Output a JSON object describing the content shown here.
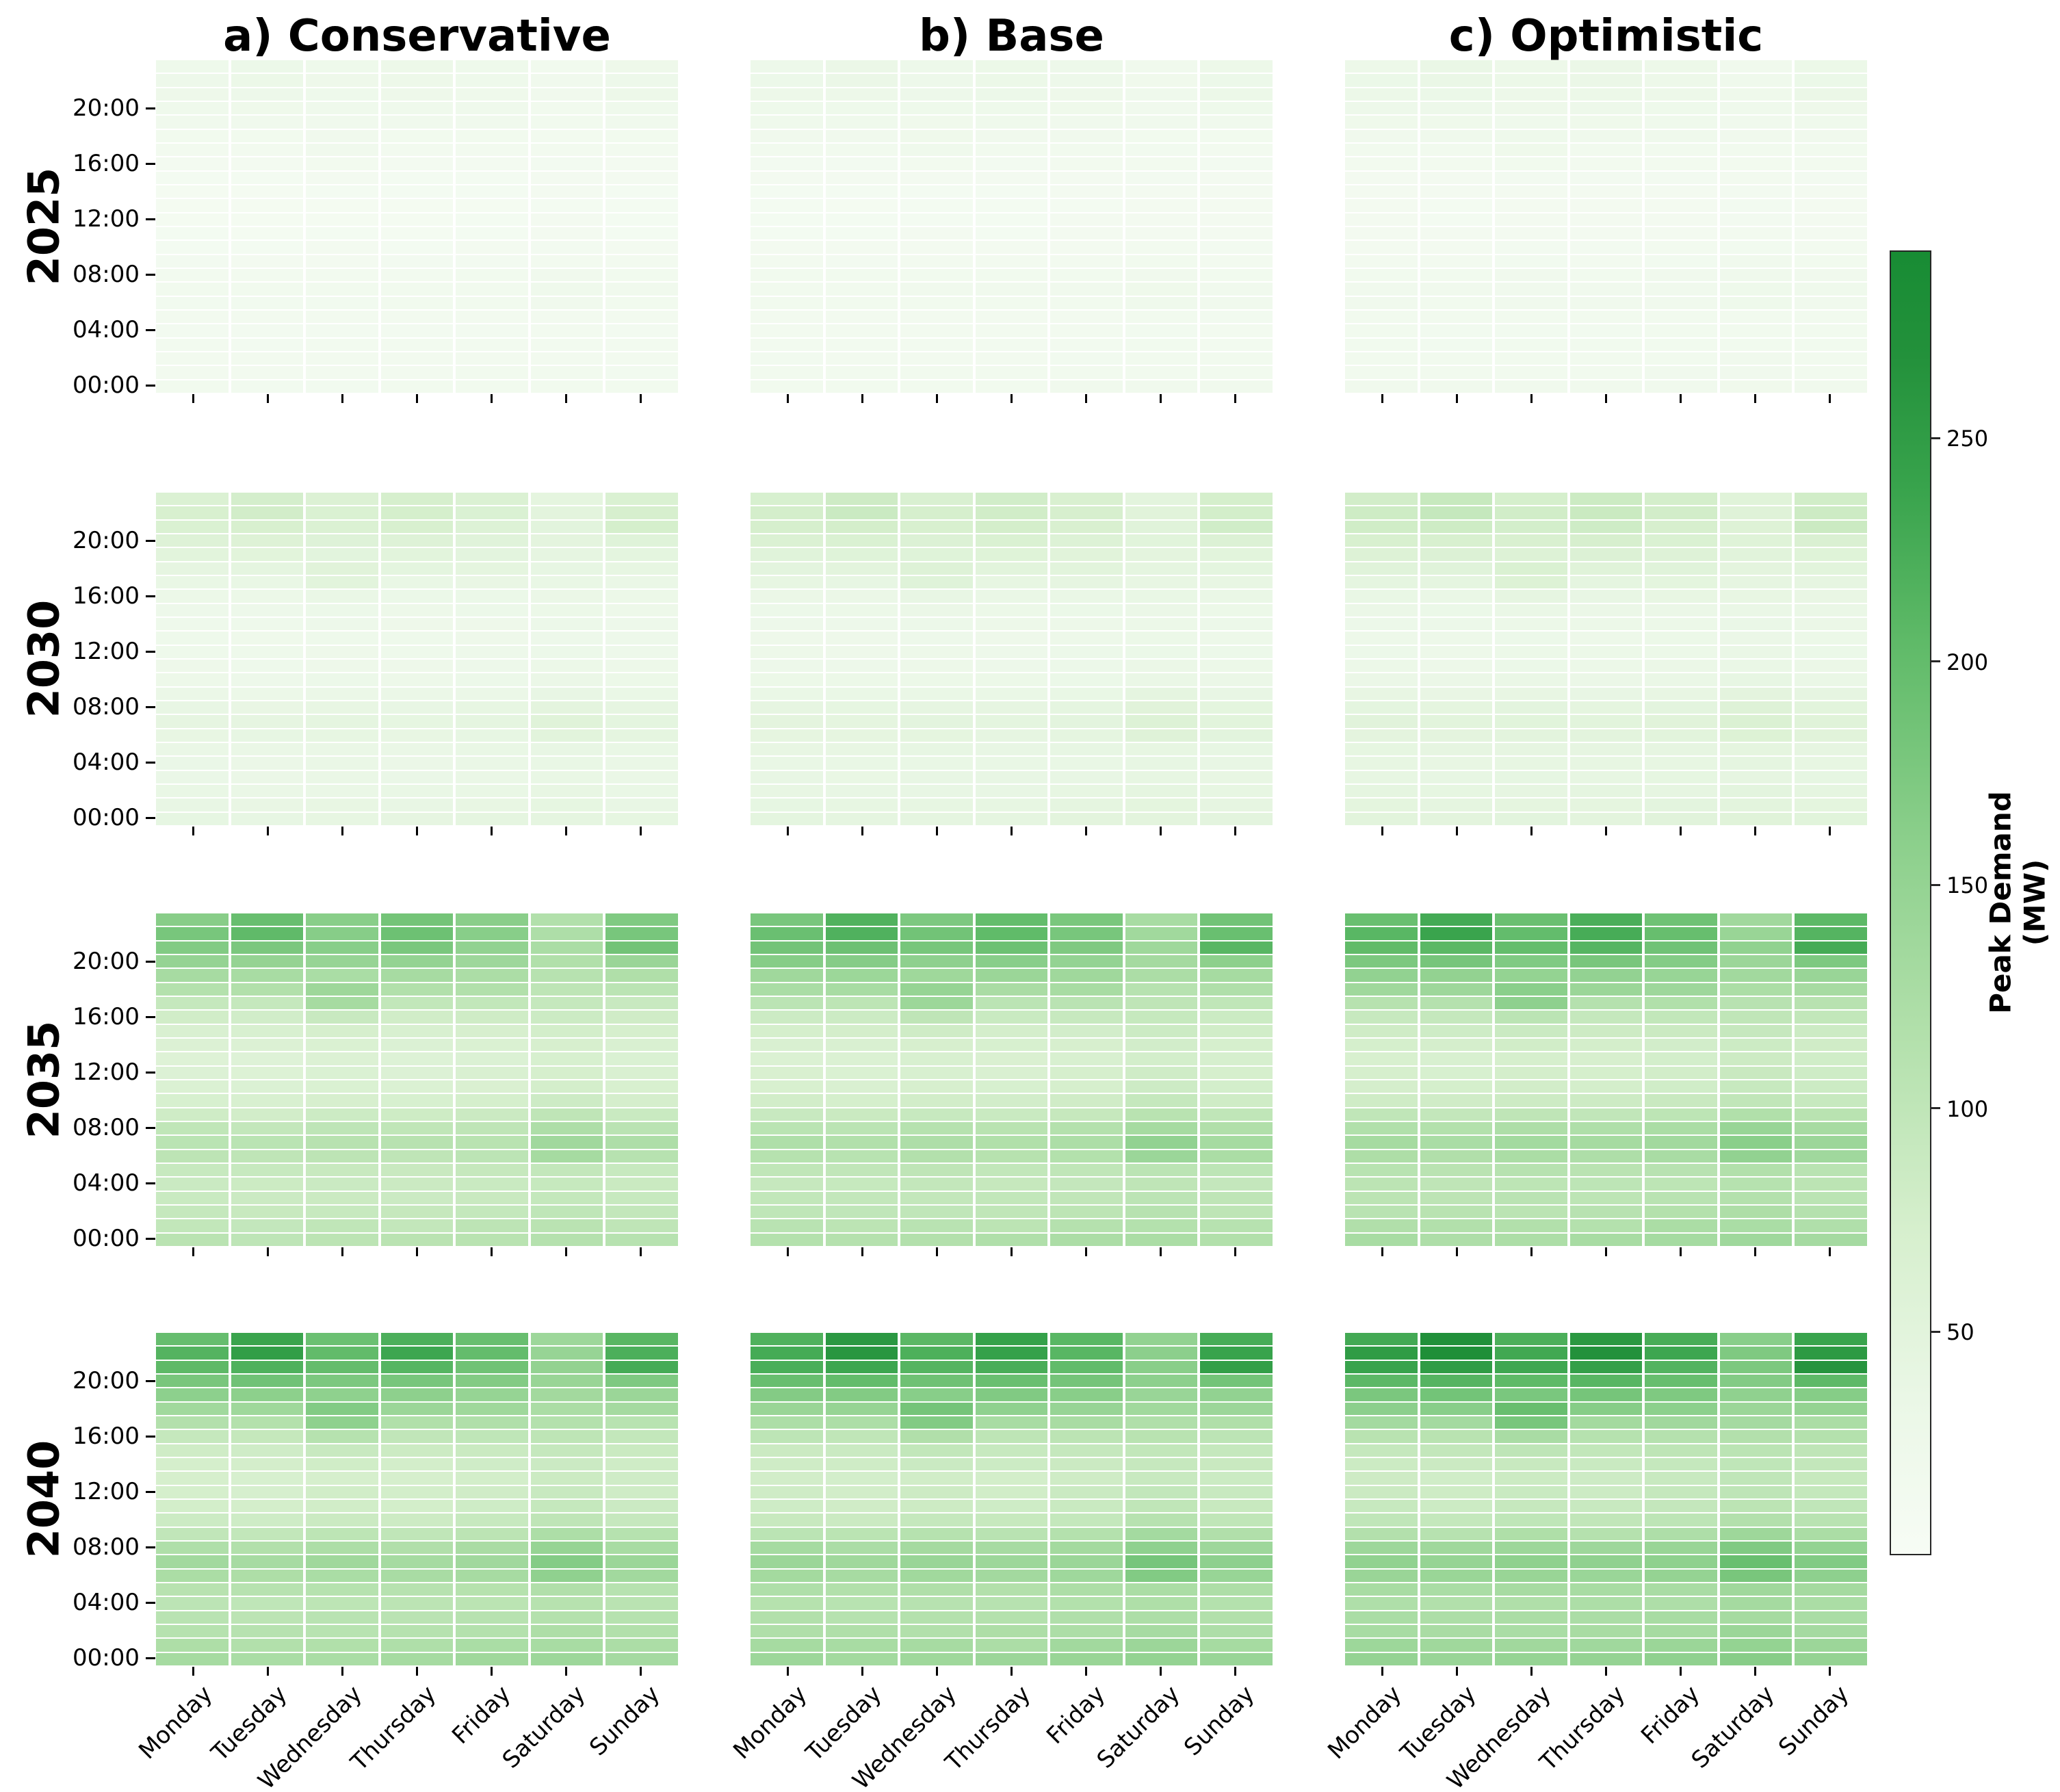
{
  "chart_data": {
    "type": "heatmap",
    "grid_layout": "4 rows (years) x 3 columns (scenarios)",
    "col_titles": [
      "a) Conservative",
      "b) Base",
      "c) Optimistic"
    ],
    "row_labels": [
      "2025",
      "2030",
      "2035",
      "2040"
    ],
    "scenarios": [
      "conservative",
      "base",
      "optimistic"
    ],
    "x_categories": [
      "Monday",
      "Tuesday",
      "Wednesday",
      "Thursday",
      "Friday",
      "Saturday",
      "Sunday"
    ],
    "y_axis": {
      "unit": "hour-of-day",
      "hours": 24,
      "orientation": "00:00 at bottom, 23:00 at top",
      "tick_hours": [
        0,
        4,
        8,
        12,
        16,
        20
      ],
      "tick_labels": [
        "00:00",
        "04:00",
        "08:00",
        "12:00",
        "16:00",
        "20:00"
      ]
    },
    "layout_hints": {
      "x_tick_labels_on": "bottom row only, rotated 45deg",
      "y_tick_labels_on": "left column of each row",
      "cell_gridlines": "white",
      "background": "white"
    },
    "colorbar": {
      "label_lines": [
        "Peak Demand",
        "(MW)"
      ],
      "ticks": [
        50,
        100,
        150,
        200,
        250
      ],
      "vmin": 0,
      "vmax": 292,
      "colormap_stops": [
        {
          "t": 0.0,
          "color": "#f7fcf5"
        },
        {
          "t": 0.12,
          "color": "#eaf7e6"
        },
        {
          "t": 0.25,
          "color": "#d6efcd"
        },
        {
          "t": 0.4,
          "color": "#b2e0ab"
        },
        {
          "t": 0.55,
          "color": "#8bcf8b"
        },
        {
          "t": 0.7,
          "color": "#5fba68"
        },
        {
          "t": 0.82,
          "color": "#38a34c"
        },
        {
          "t": 0.92,
          "color": "#23913b"
        },
        {
          "t": 1.0,
          "color": "#188c34"
        }
      ]
    },
    "peak_demand_mw": [
      {
        "year": "2025",
        "conservative": 30,
        "base": 33,
        "optimistic": 36
      },
      {
        "year": "2030",
        "conservative": 80,
        "base": 88,
        "optimistic": 96
      },
      {
        "year": "2035",
        "conservative": 205,
        "base": 225,
        "optimistic": 245
      },
      {
        "year": "2040",
        "conservative": 250,
        "base": 268,
        "optimistic": 288
      }
    ],
    "peaks_mw_matrix": [
      [
        30,
        33,
        36
      ],
      [
        80,
        88,
        96
      ],
      [
        205,
        225,
        245
      ],
      [
        250,
        268,
        288
      ]
    ],
    "weekly_profile_fraction": {
      "description": "fraction of year/scenario peak demand; rows = hour 0..23, cols = Monday..Sunday",
      "matrix": [
        [
          0.52,
          0.5,
          0.51,
          0.52,
          0.54,
          0.56,
          0.53
        ],
        [
          0.48,
          0.47,
          0.48,
          0.47,
          0.5,
          0.52,
          0.49
        ],
        [
          0.45,
          0.44,
          0.44,
          0.45,
          0.46,
          0.49,
          0.46
        ],
        [
          0.43,
          0.42,
          0.43,
          0.43,
          0.44,
          0.46,
          0.44
        ],
        [
          0.42,
          0.41,
          0.42,
          0.42,
          0.43,
          0.45,
          0.43
        ],
        [
          0.44,
          0.44,
          0.45,
          0.44,
          0.45,
          0.47,
          0.45
        ],
        [
          0.5,
          0.49,
          0.51,
          0.5,
          0.51,
          0.63,
          0.55
        ],
        [
          0.53,
          0.52,
          0.54,
          0.53,
          0.54,
          0.67,
          0.58
        ],
        [
          0.48,
          0.47,
          0.49,
          0.48,
          0.5,
          0.59,
          0.52
        ],
        [
          0.4,
          0.39,
          0.41,
          0.4,
          0.42,
          0.49,
          0.44
        ],
        [
          0.34,
          0.33,
          0.35,
          0.34,
          0.36,
          0.41,
          0.37
        ],
        [
          0.31,
          0.3,
          0.32,
          0.31,
          0.33,
          0.37,
          0.34
        ],
        [
          0.3,
          0.29,
          0.31,
          0.3,
          0.32,
          0.36,
          0.33
        ],
        [
          0.29,
          0.28,
          0.3,
          0.29,
          0.31,
          0.34,
          0.32
        ],
        [
          0.3,
          0.3,
          0.32,
          0.31,
          0.32,
          0.35,
          0.33
        ],
        [
          0.33,
          0.33,
          0.36,
          0.34,
          0.35,
          0.37,
          0.35
        ],
        [
          0.38,
          0.38,
          0.44,
          0.39,
          0.4,
          0.41,
          0.39
        ],
        [
          0.46,
          0.46,
          0.63,
          0.47,
          0.48,
          0.45,
          0.44
        ],
        [
          0.55,
          0.56,
          0.67,
          0.57,
          0.56,
          0.5,
          0.52
        ],
        [
          0.62,
          0.63,
          0.62,
          0.63,
          0.6,
          0.54,
          0.58
        ],
        [
          0.72,
          0.74,
          0.71,
          0.73,
          0.68,
          0.58,
          0.7
        ],
        [
          0.82,
          0.86,
          0.8,
          0.85,
          0.76,
          0.62,
          0.92
        ],
        [
          0.86,
          0.98,
          0.82,
          0.92,
          0.8,
          0.6,
          0.88
        ],
        [
          0.8,
          0.95,
          0.78,
          0.9,
          0.78,
          0.56,
          0.84
        ]
      ]
    },
    "noise_amplitude_fraction": 0.02,
    "cell_value_rule": "value_mw = peaks_mw_matrix[yearRow][scenarioCol] * weekly_profile_fraction.matrix[hour][day]"
  }
}
